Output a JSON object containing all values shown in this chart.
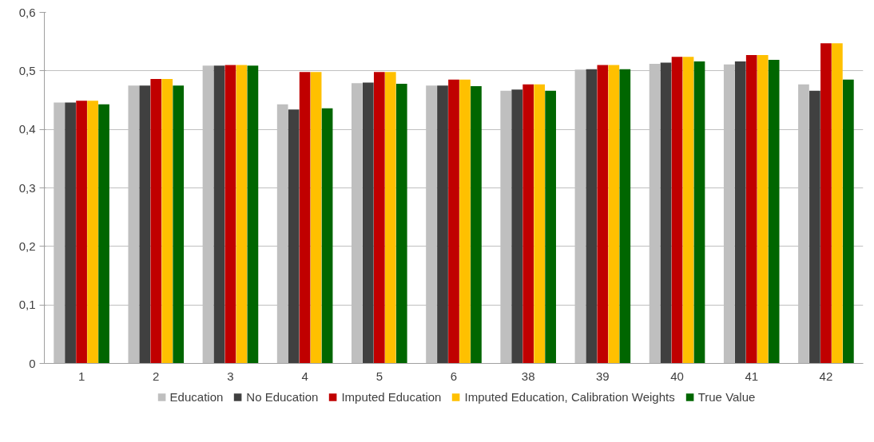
{
  "chart_data": {
    "type": "bar",
    "categories": [
      "1",
      "2",
      "3",
      "4",
      "5",
      "6",
      "38",
      "39",
      "40",
      "41",
      "42"
    ],
    "series": [
      {
        "name": "Education",
        "color": "#bfbfbf",
        "values": [
          0.446,
          0.475,
          0.509,
          0.443,
          0.479,
          0.475,
          0.466,
          0.502,
          0.512,
          0.511,
          0.477
        ]
      },
      {
        "name": "No Education",
        "color": "#404040",
        "values": [
          0.446,
          0.475,
          0.509,
          0.434,
          0.48,
          0.475,
          0.468,
          0.503,
          0.514,
          0.516,
          0.466
        ]
      },
      {
        "name": "Imputed Education",
        "color": "#c00000",
        "values": [
          0.449,
          0.486,
          0.51,
          0.498,
          0.498,
          0.485,
          0.477,
          0.51,
          0.524,
          0.527,
          0.547
        ]
      },
      {
        "name": "Imputed Education, Calibration Weights",
        "color": "#ffc000",
        "values": [
          0.449,
          0.486,
          0.51,
          0.498,
          0.498,
          0.485,
          0.477,
          0.51,
          0.524,
          0.527,
          0.547
        ]
      },
      {
        "name": "True Value",
        "color": "#006600",
        "values": [
          0.443,
          0.475,
          0.509,
          0.436,
          0.478,
          0.474,
          0.466,
          0.503,
          0.516,
          0.519,
          0.485
        ]
      }
    ],
    "ylim": [
      0,
      0.6
    ],
    "yticks": [
      0,
      {
        "value": 0.1,
        "label": "0,1"
      },
      {
        "value": 0.2,
        "label": "0,2"
      },
      {
        "value": 0.3,
        "label": "0,3"
      },
      {
        "value": 0.4,
        "label": "0,4"
      },
      {
        "value": 0.5,
        "label": "0,5"
      },
      {
        "value": 0.6,
        "label": "0,6"
      }
    ],
    "grid": "y",
    "legend": "bottom"
  }
}
